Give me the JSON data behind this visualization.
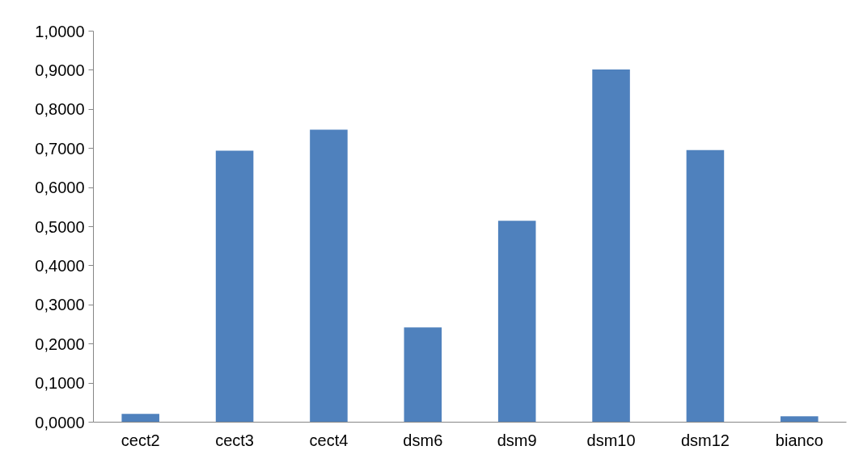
{
  "chart_data": {
    "type": "bar",
    "categories": [
      "cect2",
      "cect3",
      "cect4",
      "dsm6",
      "dsm9",
      "dsm10",
      "dsm12",
      "bianco"
    ],
    "series": [
      {
        "color": "#4f81bd",
        "values": [
          0.021,
          0.694,
          0.748,
          0.242,
          0.515,
          0.902,
          0.696,
          0.015
        ]
      }
    ],
    "ylim": [
      0,
      1
    ],
    "yticks": [
      {
        "value": 0,
        "label": "0,0000"
      },
      {
        "value": 0.1,
        "label": "0,1000"
      },
      {
        "value": 0.2,
        "label": "0,2000"
      },
      {
        "value": 0.3,
        "label": "0,3000"
      },
      {
        "value": 0.4,
        "label": "0,4000"
      },
      {
        "value": 0.5,
        "label": "0,5000"
      },
      {
        "value": 0.6,
        "label": "0,6000"
      },
      {
        "value": 0.7,
        "label": "0,7000"
      },
      {
        "value": 0.8,
        "label": "0,8000"
      },
      {
        "value": 0.9,
        "label": "0,9000"
      },
      {
        "value": 1,
        "label": "1,0000"
      }
    ],
    "grid": false
  }
}
